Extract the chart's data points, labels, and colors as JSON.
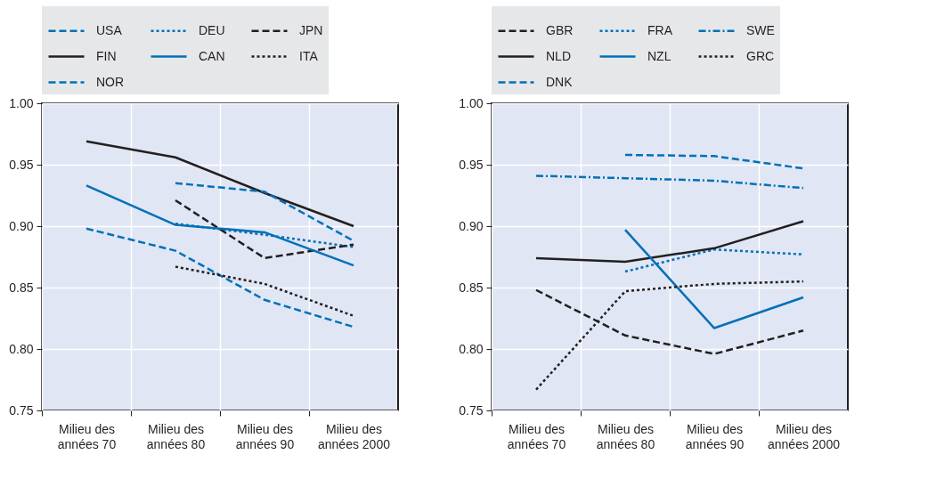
{
  "chart_data": [
    {
      "type": "line",
      "categories": [
        "Milieu des années 70",
        "Milieu des années 80",
        "Milieu des années 90",
        "Milieu des années 2000"
      ],
      "ylim": [
        0.75,
        1.0
      ],
      "yticks": [
        0.75,
        {
          "value": 0.8,
          "label": "0.80"
        },
        0.85,
        {
          "value": 0.9,
          "label": "0.90"
        },
        0.95,
        {
          "value": 1.0,
          "label": "1.00"
        }
      ],
      "grid": true,
      "legend": "top",
      "marker": "none",
      "series": [
        {
          "name": "USA",
          "color": "#0070b8",
          "line_style": "dashed",
          "values": [
            0.898,
            0.88,
            0.84,
            0.818
          ]
        },
        {
          "name": "DEU",
          "color": "#0070b8",
          "line_style": "dotted",
          "values": [
            null,
            0.902,
            0.893,
            0.883
          ]
        },
        {
          "name": "JPN",
          "color": "#231f20",
          "line_style": "dashed",
          "values": [
            null,
            0.921,
            0.874,
            0.885
          ]
        },
        {
          "name": "FIN",
          "color": "#231f20",
          "line_style": "solid",
          "values": [
            0.969,
            0.956,
            0.927,
            0.9
          ]
        },
        {
          "name": "CAN",
          "color": "#0070b8",
          "line_style": "solid",
          "values": [
            0.933,
            0.901,
            0.895,
            0.868
          ]
        },
        {
          "name": "ITA",
          "color": "#231f20",
          "line_style": "dotted",
          "values": [
            null,
            0.867,
            0.853,
            0.827
          ]
        },
        {
          "name": "NOR",
          "color": "#0070b8",
          "line_style": "dashed",
          "values": [
            null,
            0.935,
            0.928,
            0.888
          ]
        }
      ]
    },
    {
      "type": "line",
      "categories": [
        "Milieu des années 70",
        "Milieu des années 80",
        "Milieu des années 90",
        "Milieu des années 2000"
      ],
      "ylim": [
        0.75,
        1.0
      ],
      "yticks": [
        0.75,
        {
          "value": 0.8,
          "label": "0.80"
        },
        0.85,
        {
          "value": 0.9,
          "label": "0.90"
        },
        0.95,
        {
          "value": 1.0,
          "label": "1.00"
        }
      ],
      "grid": true,
      "legend": "top",
      "marker": "none",
      "series": [
        {
          "name": "GBR",
          "color": "#231f20",
          "line_style": "dashed",
          "values": [
            0.848,
            0.811,
            0.796,
            0.815
          ]
        },
        {
          "name": "FRA",
          "color": "#0070b8",
          "line_style": "dotted",
          "values": [
            null,
            0.863,
            0.881,
            0.877
          ]
        },
        {
          "name": "SWE",
          "color": "#0070b8",
          "line_style": "dashdot",
          "values": [
            0.941,
            0.939,
            0.937,
            0.931
          ]
        },
        {
          "name": "NLD",
          "color": "#231f20",
          "line_style": "solid",
          "values": [
            0.874,
            0.871,
            0.882,
            0.904
          ]
        },
        {
          "name": "NZL",
          "color": "#0070b8",
          "line_style": "solid",
          "values": [
            null,
            0.897,
            0.817,
            0.842
          ]
        },
        {
          "name": "GRC",
          "color": "#231f20",
          "line_style": "dotted",
          "values": [
            0.767,
            0.847,
            0.853,
            0.855
          ]
        },
        {
          "name": "DNK",
          "color": "#0070b8",
          "line_style": "dashed",
          "values": [
            null,
            0.958,
            0.957,
            0.947
          ]
        }
      ]
    }
  ]
}
